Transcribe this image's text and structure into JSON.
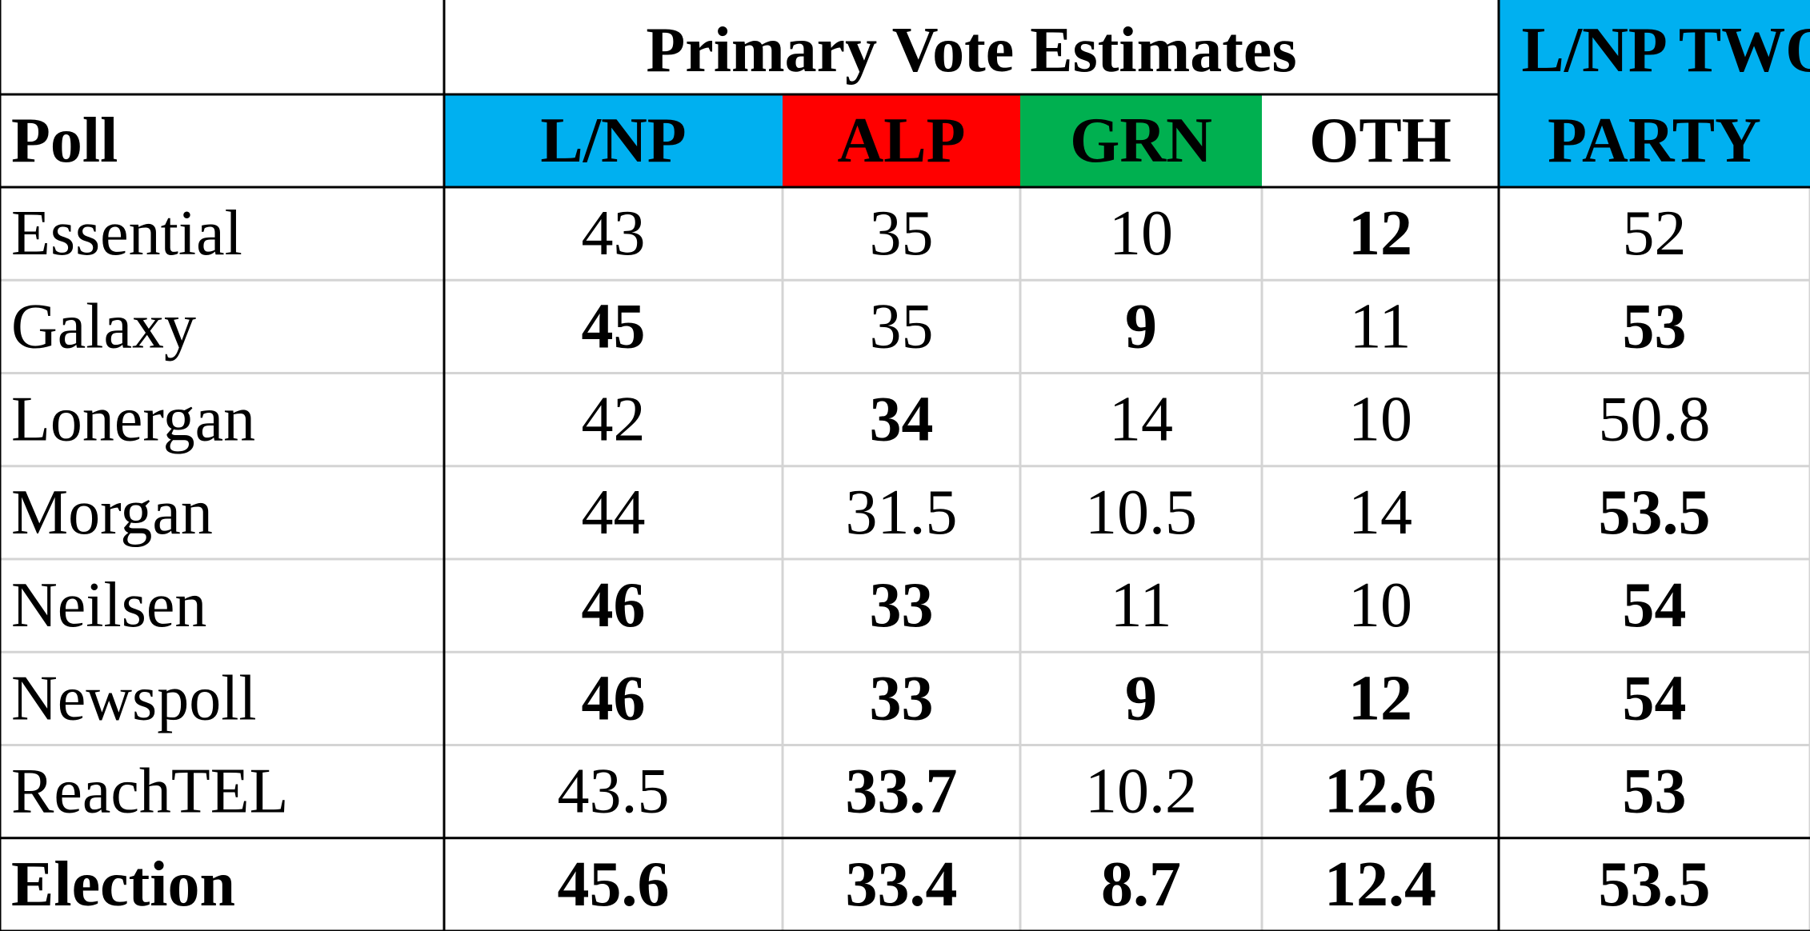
{
  "header": {
    "poll_label": "Poll",
    "group_title": "Primary Vote Estimates",
    "columns": [
      {
        "label": "L/NP",
        "color": "#00b0f0"
      },
      {
        "label": "ALP",
        "color": "#ff0000"
      },
      {
        "label": "GRN",
        "color": "#00b050"
      },
      {
        "label": "OTH",
        "color": "#ffffff"
      }
    ],
    "two_party": {
      "lines": [
        "L/NP TWO",
        "PARTY"
      ],
      "color": "#00b0f0"
    }
  },
  "table": {
    "rows": [
      {
        "cells": [
          "Essential",
          43,
          35,
          10,
          12,
          52
        ],
        "bold": [
          false,
          false,
          false,
          false,
          true,
          false
        ]
      },
      {
        "cells": [
          "Galaxy",
          45,
          35,
          9,
          11,
          53
        ],
        "bold": [
          false,
          true,
          false,
          true,
          false,
          true
        ]
      },
      {
        "cells": [
          "Lonergan",
          42,
          34,
          14,
          10,
          50.8
        ],
        "bold": [
          false,
          false,
          true,
          false,
          false,
          false
        ]
      },
      {
        "cells": [
          "Morgan",
          44,
          31.5,
          10.5,
          14,
          53.5
        ],
        "bold": [
          false,
          false,
          false,
          false,
          false,
          true
        ]
      },
      {
        "cells": [
          "Neilsen",
          46,
          33,
          11,
          10,
          54
        ],
        "bold": [
          false,
          true,
          true,
          false,
          false,
          true
        ]
      },
      {
        "cells": [
          "Newspoll",
          46,
          33,
          9,
          12,
          54
        ],
        "bold": [
          false,
          true,
          true,
          true,
          true,
          true
        ]
      },
      {
        "cells": [
          "ReachTEL",
          43.5,
          33.7,
          10.2,
          12.6,
          53
        ],
        "bold": [
          false,
          false,
          true,
          false,
          true,
          true
        ]
      },
      {
        "cells": [
          "Election",
          45.6,
          33.4,
          8.7,
          12.4,
          53.5
        ],
        "bold": [
          true,
          true,
          true,
          true,
          true,
          true
        ]
      }
    ]
  }
}
